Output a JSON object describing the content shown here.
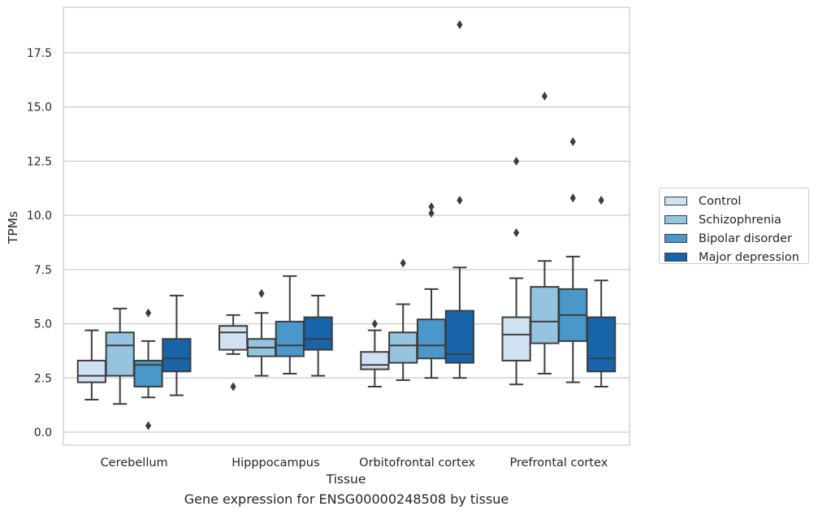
{
  "caption": "Gene expression for ENSG00000248508 by tissue",
  "chart_data": {
    "type": "box",
    "xlabel": "Tissue",
    "ylabel": "TPMs",
    "ylim": [
      -0.6,
      19.6
    ],
    "yticks": [
      0.0,
      2.5,
      5.0,
      7.5,
      10.0,
      12.5,
      15.0,
      17.5
    ],
    "ytick_labels": [
      "0.0",
      "2.5",
      "5.0",
      "7.5",
      "10.0",
      "12.5",
      "15.0",
      "17.5"
    ],
    "grid": "horizontal",
    "legend_position": "right",
    "categories": [
      "Cerebellum",
      "Hipppocampus",
      "Orbitofrontal cortex",
      "Prefrontal cortex"
    ],
    "series": [
      {
        "name": "Control",
        "color": "#d0e1f2",
        "boxes": [
          {
            "whislo": 1.5,
            "q1": 2.3,
            "med": 2.6,
            "q3": 3.3,
            "whishi": 4.7,
            "fliers": []
          },
          {
            "whislo": 3.6,
            "q1": 3.8,
            "med": 4.6,
            "q3": 4.9,
            "whishi": 5.4,
            "fliers": [
              2.1
            ]
          },
          {
            "whislo": 2.1,
            "q1": 2.9,
            "med": 3.1,
            "q3": 3.7,
            "whishi": 4.7,
            "fliers": [
              5.0
            ]
          },
          {
            "whislo": 2.2,
            "q1": 3.3,
            "med": 4.5,
            "q3": 5.3,
            "whishi": 7.1,
            "fliers": [
              9.2,
              12.5
            ]
          }
        ]
      },
      {
        "name": "Schizophrenia",
        "color": "#94c4df",
        "boxes": [
          {
            "whislo": 1.3,
            "q1": 2.6,
            "med": 4.0,
            "q3": 4.6,
            "whishi": 5.7,
            "fliers": []
          },
          {
            "whislo": 2.6,
            "q1": 3.5,
            "med": 3.9,
            "q3": 4.3,
            "whishi": 5.5,
            "fliers": [
              6.4
            ]
          },
          {
            "whislo": 2.4,
            "q1": 3.2,
            "med": 4.0,
            "q3": 4.6,
            "whishi": 5.9,
            "fliers": [
              7.8
            ]
          },
          {
            "whislo": 2.7,
            "q1": 4.1,
            "med": 5.1,
            "q3": 6.7,
            "whishi": 7.9,
            "fliers": [
              15.5
            ]
          }
        ]
      },
      {
        "name": "Bipolar disorder",
        "color": "#4a98c9",
        "boxes": [
          {
            "whislo": 1.6,
            "q1": 2.1,
            "med": 3.1,
            "q3": 3.3,
            "whishi": 4.2,
            "fliers": [
              0.3,
              5.5
            ]
          },
          {
            "whislo": 2.7,
            "q1": 3.5,
            "med": 4.0,
            "q3": 5.1,
            "whishi": 7.2,
            "fliers": []
          },
          {
            "whislo": 2.5,
            "q1": 3.4,
            "med": 4.0,
            "q3": 5.2,
            "whishi": 6.6,
            "fliers": [
              10.1,
              10.4
            ]
          },
          {
            "whislo": 2.3,
            "q1": 4.2,
            "med": 5.4,
            "q3": 6.6,
            "whishi": 8.1,
            "fliers": [
              10.8,
              13.4
            ]
          }
        ]
      },
      {
        "name": "Major depression",
        "color": "#1764ab",
        "boxes": [
          {
            "whislo": 1.7,
            "q1": 2.8,
            "med": 3.4,
            "q3": 4.3,
            "whishi": 6.3,
            "fliers": []
          },
          {
            "whislo": 2.6,
            "q1": 3.8,
            "med": 4.3,
            "q3": 5.3,
            "whishi": 6.3,
            "fliers": []
          },
          {
            "whislo": 2.5,
            "q1": 3.2,
            "med": 3.6,
            "q3": 5.6,
            "whishi": 7.6,
            "fliers": [
              10.7,
              18.8
            ]
          },
          {
            "whislo": 2.1,
            "q1": 2.8,
            "med": 3.4,
            "q3": 5.3,
            "whishi": 7.0,
            "fliers": [
              10.7
            ]
          }
        ]
      }
    ]
  }
}
